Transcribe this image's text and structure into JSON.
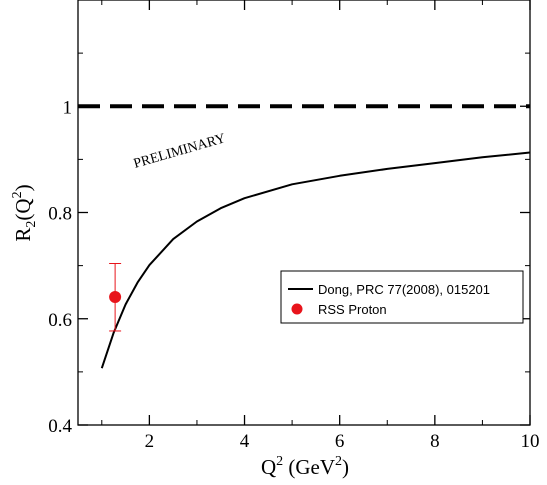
{
  "chart_data": {
    "type": "line",
    "title": "",
    "xlabel_base": "Q",
    "xlabel_sup": "2",
    "xlabel_rest": " (GeV",
    "xlabel_rest_sup": "2",
    "xlabel_close": ")",
    "ylabel_base": "R",
    "ylabel_sub": "2",
    "ylabel_open": "(Q",
    "ylabel_sup": "2",
    "ylabel_close": ")",
    "xlim": [
      0.5,
      10
    ],
    "ylim": [
      0.4,
      1.2
    ],
    "x_ticks": [
      {
        "value": 2,
        "label": "2"
      },
      {
        "value": 4,
        "label": "4"
      },
      {
        "value": 6,
        "label": "6"
      },
      {
        "value": 8,
        "label": "8"
      },
      {
        "value": 10,
        "label": "10"
      }
    ],
    "y_ticks": [
      {
        "value": 0.4,
        "label": "0.4"
      },
      {
        "value": 0.6,
        "label": "0.6"
      },
      {
        "value": 0.8,
        "label": "0.8"
      },
      {
        "value": 1.0,
        "label": "1"
      }
    ],
    "reference_line": {
      "y": 1.0,
      "style": "dashed"
    },
    "annotation": "PRELIMINARY",
    "series": [
      {
        "name": "Dong, PRC 77(2008), 015201",
        "kind": "line",
        "color": "#000000",
        "x": [
          1.0,
          1.25,
          1.5,
          1.75,
          2.0,
          2.5,
          3.0,
          3.5,
          4.0,
          5.0,
          6.0,
          7.0,
          8.0,
          9.0,
          10.0
        ],
        "y": [
          0.507,
          0.574,
          0.627,
          0.668,
          0.701,
          0.75,
          0.783,
          0.808,
          0.827,
          0.853,
          0.869,
          0.882,
          0.893,
          0.904,
          0.913
        ]
      },
      {
        "name": "RSS Proton",
        "kind": "scatter",
        "color": "#e8141b",
        "x": [
          1.28
        ],
        "y": [
          0.641
        ],
        "yerr_low": [
          0.577
        ],
        "yerr_high": [
          0.704
        ]
      }
    ],
    "legend_position": "right-center"
  }
}
